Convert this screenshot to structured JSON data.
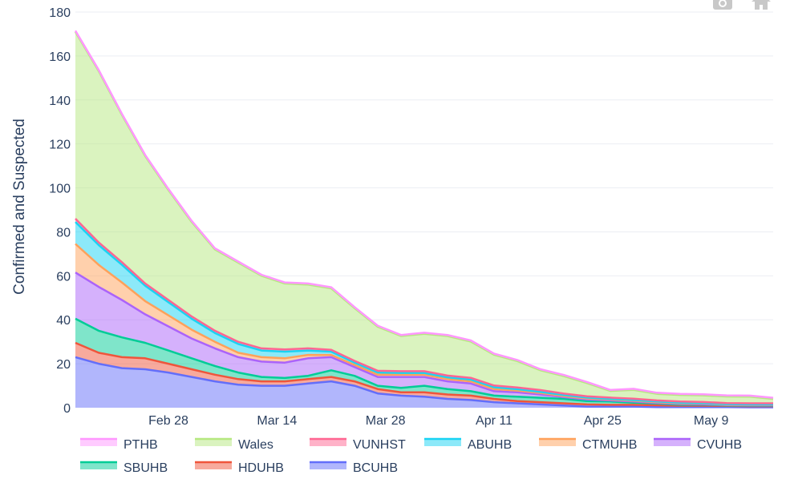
{
  "chart_data": {
    "type": "area",
    "stacked": true,
    "ylabel": "Confirmed and Suspected",
    "ylim": [
      0,
      180
    ],
    "yticks": [
      0,
      20,
      40,
      60,
      80,
      100,
      120,
      140,
      160,
      180
    ],
    "xticks": [
      "Feb 28",
      "Mar 14",
      "Mar 28",
      "Apr 11",
      "Apr 25",
      "May 9"
    ],
    "x": [
      "Feb 16",
      "Feb 19",
      "Feb 22",
      "Feb 25",
      "Feb 28",
      "Mar 3",
      "Mar 6",
      "Mar 9",
      "Mar 12",
      "Mar 15",
      "Mar 18",
      "Mar 21",
      "Mar 24",
      "Mar 27",
      "Mar 30",
      "Apr 2",
      "Apr 5",
      "Apr 8",
      "Apr 11",
      "Apr 14",
      "Apr 17",
      "Apr 20",
      "Apr 23",
      "Apr 26",
      "Apr 29",
      "May 2",
      "May 5",
      "May 8",
      "May 11",
      "May 14",
      "May 17"
    ],
    "grid": true,
    "legend_position": "bottom",
    "series": [
      {
        "name": "BCUHB",
        "color": "#636efa",
        "values": [
          23,
          20,
          18,
          17.5,
          16,
          14,
          12,
          10.5,
          10,
          10,
          11,
          12,
          10,
          6.5,
          5.5,
          5,
          4,
          3.5,
          2.5,
          2,
          1.5,
          1,
          0.5,
          0.5,
          0.5,
          0.3,
          0.3,
          0.3,
          0.3,
          0.2,
          0.2
        ]
      },
      {
        "name": "HDUHB",
        "color": "#ef553b",
        "values": [
          6.5,
          5,
          5,
          5,
          4,
          3.5,
          3,
          2.5,
          2,
          2,
          2,
          2,
          2,
          2,
          1.5,
          2,
          2,
          2,
          1.5,
          1,
          1,
          1,
          1,
          0.8,
          0.8,
          0.8,
          0.6,
          0.6,
          0.5,
          0.5,
          0.5
        ]
      },
      {
        "name": "SBUHB",
        "color": "#00cc96",
        "values": [
          11,
          10,
          9,
          7,
          6,
          5,
          4,
          3,
          2,
          1.5,
          1.5,
          3,
          2.5,
          1.5,
          2,
          3,
          2.5,
          2,
          1.5,
          2,
          2,
          2,
          1.5,
          1.5,
          1,
          0.8,
          0.5,
          0.5,
          0.2,
          0.2,
          0.2
        ]
      },
      {
        "name": "CVUHB",
        "color": "#ab63fa",
        "values": [
          21,
          20,
          17,
          13,
          11,
          9,
          8,
          7,
          7,
          7,
          8,
          6,
          4,
          4,
          5,
          4,
          3.5,
          3.5,
          2,
          2,
          1.5,
          0.8,
          0.7,
          0.5,
          0.5,
          0.3,
          0.3,
          0.2,
          0.2,
          0.2,
          0.2
        ]
      },
      {
        "name": "CTMUHB",
        "color": "#ffa15a",
        "values": [
          13,
          10,
          8,
          6,
          5,
          4,
          3,
          2,
          2,
          2,
          1.5,
          1,
          1,
          1,
          1,
          1,
          1,
          1,
          1,
          0.8,
          0.7,
          0.5,
          0.5,
          0.4,
          0.4,
          0.3,
          0.3,
          0.3,
          0.2,
          0.2,
          0.2
        ]
      },
      {
        "name": "ABUHB",
        "color": "#19d3f3",
        "values": [
          10,
          9,
          8,
          7,
          6,
          5,
          4,
          4,
          3,
          3,
          2,
          1.5,
          1,
          1,
          0.8,
          0.8,
          0.8,
          0.8,
          0.8,
          0.6,
          0.5,
          0.5,
          0.4,
          0.3,
          0.3,
          0.3,
          0.3,
          0.2,
          0.2,
          0.2,
          0.2
        ]
      },
      {
        "name": "VUNHST",
        "color": "#ff6692",
        "values": [
          1.5,
          1.2,
          1.2,
          1,
          1,
          1,
          1,
          1,
          1,
          1,
          1,
          0.8,
          0.8,
          0.8,
          0.8,
          0.8,
          0.8,
          0.8,
          0.8,
          0.8,
          0.8,
          0.6,
          0.6,
          0.6,
          0.6,
          0.5,
          0.5,
          0.5,
          0.5,
          0.5,
          0.5
        ]
      },
      {
        "name": "Wales",
        "color": "#b6e880",
        "values": [
          85,
          78,
          67,
          58,
          50,
          43,
          37,
          36,
          33,
          30,
          29,
          28,
          24,
          20,
          16,
          17,
          18,
          16.5,
          14,
          12,
          9,
          8,
          6,
          3,
          4,
          3,
          3,
          3,
          3,
          3,
          2
        ]
      },
      {
        "name": "PTHB",
        "color": "#ff97ff",
        "values": [
          0.5,
          0.5,
          0.5,
          0.5,
          0.5,
          0.5,
          0.5,
          0.5,
          0.5,
          0.5,
          0.5,
          0.5,
          0.5,
          0.5,
          0.5,
          0.5,
          0.5,
          0.5,
          0.5,
          0.5,
          0.5,
          0.5,
          0.5,
          0.5,
          0.5,
          0.5,
          0.5,
          0.5,
          0.5,
          0.5,
          0.5
        ]
      }
    ],
    "legend_order": [
      "PTHB",
      "Wales",
      "VUNHST",
      "ABUHB",
      "CTMUHB",
      "CVUHB",
      "SBUHB",
      "HDUHB",
      "BCUHB"
    ]
  },
  "modebar": {
    "camera_icon": "camera-icon",
    "home_icon": "home-icon"
  }
}
